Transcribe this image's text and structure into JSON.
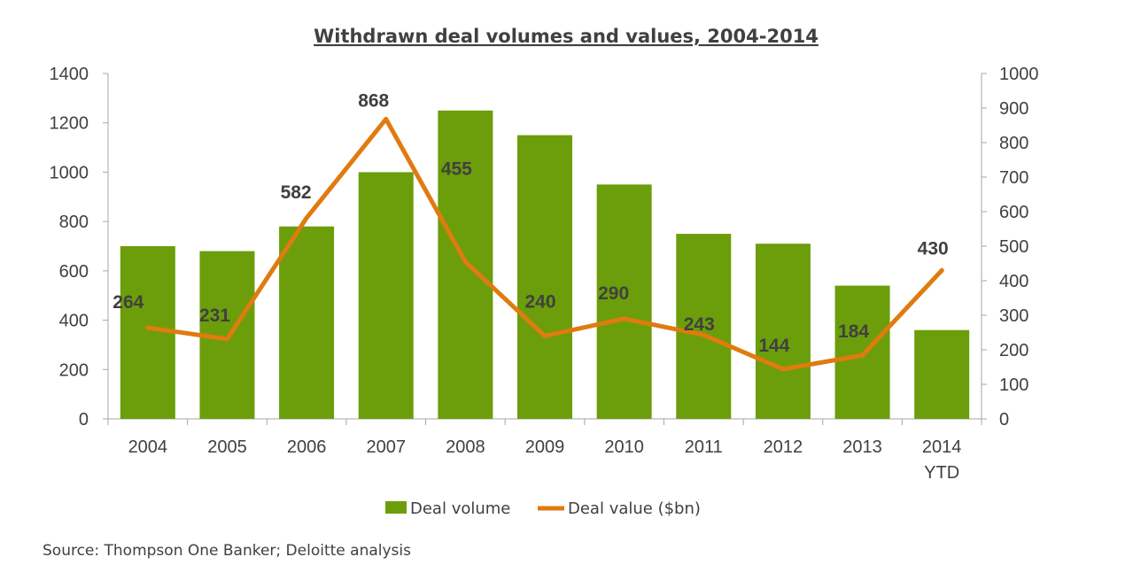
{
  "chart_data": {
    "type": "bar",
    "title": "Withdrawn deal volumes and values, 2004-2014",
    "categories": [
      "2004",
      "2005",
      "2006",
      "2007",
      "2008",
      "2009",
      "2010",
      "2011",
      "2012",
      "2013",
      "2014"
    ],
    "category_sublabels": [
      "",
      "",
      "",
      "",
      "",
      "",
      "",
      "",
      "",
      "",
      "YTD"
    ],
    "series": [
      {
        "name": "Deal volume",
        "type": "bar",
        "axis": "left",
        "color": "#6b9e0a",
        "values": [
          700,
          680,
          780,
          1000,
          1250,
          1150,
          950,
          750,
          710,
          540,
          360
        ]
      },
      {
        "name": "Deal value ($bn)",
        "type": "line",
        "axis": "right",
        "color": "#e07b10",
        "values": [
          264,
          231,
          582,
          868,
          455,
          240,
          290,
          243,
          144,
          184,
          430
        ],
        "data_labels": [
          "264",
          "231",
          "582",
          "868",
          "455",
          "240",
          "290",
          "243",
          "144",
          "184",
          "430"
        ]
      }
    ],
    "y_left": {
      "min": 0,
      "max": 1400,
      "step": 200,
      "ticks": [
        "0",
        "200",
        "400",
        "600",
        "800",
        "1000",
        "1200",
        "1400"
      ]
    },
    "y_right": {
      "min": 0,
      "max": 1000,
      "step": 100,
      "ticks": [
        "0",
        "100",
        "200",
        "300",
        "400",
        "500",
        "600",
        "700",
        "800",
        "900",
        "1000"
      ]
    },
    "grid": false,
    "legend_position": "bottom"
  },
  "source_note": "Source: Thompson One Banker; Deloitte analysis",
  "colors": {
    "bar": "#6b9e0a",
    "line": "#e07b10",
    "text": "#404040",
    "axis": "#a6a6a6"
  }
}
